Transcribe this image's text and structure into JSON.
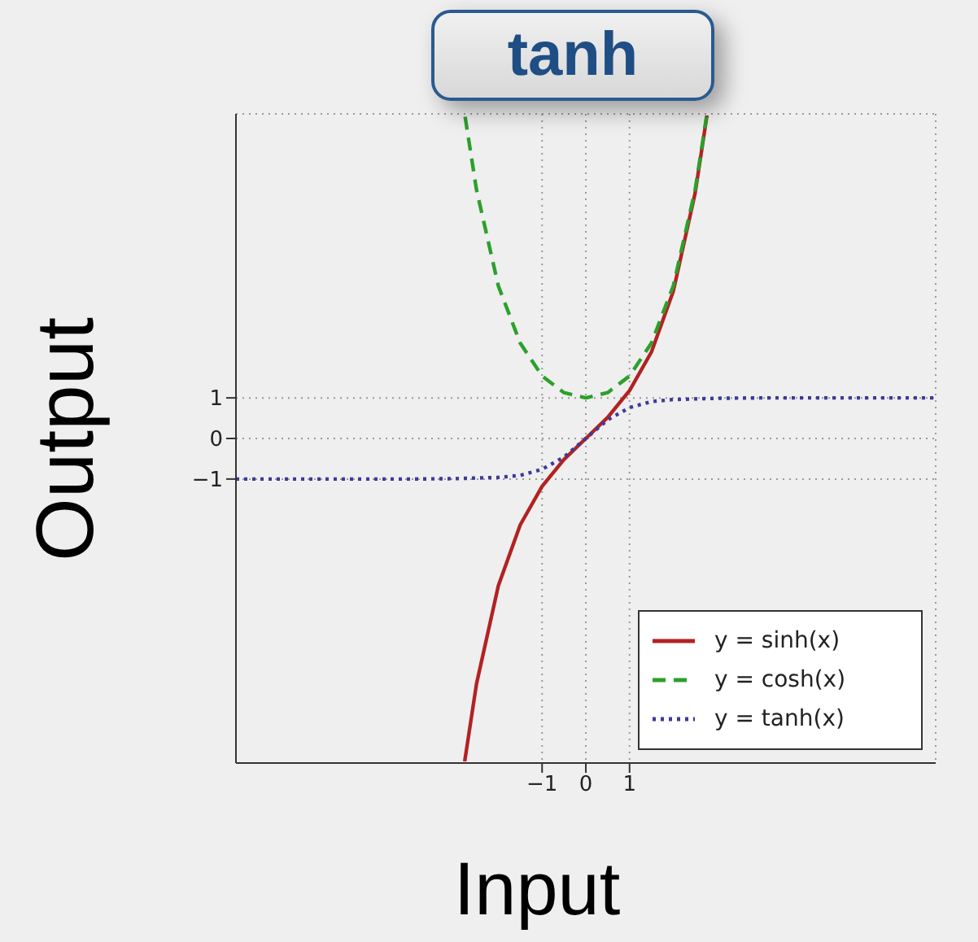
{
  "chart_data": {
    "type": "line",
    "title": "tanh",
    "xlabel": "Input",
    "ylabel": "Output",
    "xlim": [
      -8,
      8
    ],
    "ylim": [
      -8,
      8
    ],
    "xticks": [
      -1,
      0,
      1
    ],
    "yticks": [
      -1,
      0,
      1
    ],
    "grid": true,
    "legend": "bottom right",
    "marker": "none",
    "series": [
      {
        "name": "y = sinh(x)",
        "color": "#b22222",
        "line_style": "solid",
        "x": [
          -2.77,
          -2.5,
          -2,
          -1.5,
          -1,
          -0.5,
          0,
          0.5,
          1,
          1.5,
          2,
          2.5,
          2.77
        ],
        "values": [
          -7.96,
          -6.05,
          -3.63,
          -2.13,
          -1.18,
          -0.52,
          0,
          0.52,
          1.18,
          2.13,
          3.63,
          6.05,
          7.96
        ]
      },
      {
        "name": "y = cosh(x)",
        "color": "#2ca02c",
        "line_style": "dashed",
        "x": [
          -2.76,
          -2.5,
          -2,
          -1.5,
          -1,
          -0.5,
          0,
          0.5,
          1,
          1.5,
          2,
          2.5,
          2.76
        ],
        "values": [
          7.93,
          6.13,
          3.76,
          2.35,
          1.54,
          1.13,
          1,
          1.13,
          1.54,
          2.35,
          3.76,
          6.13,
          7.93
        ]
      },
      {
        "name": "y = tanh(x)",
        "color": "#3b3b9a",
        "line_style": "dotted",
        "x": [
          -8,
          -4,
          -3,
          -2,
          -1.5,
          -1,
          -0.5,
          0,
          0.5,
          1,
          1.5,
          2,
          3,
          4,
          8
        ],
        "values": [
          -1,
          -1,
          -0.99,
          -0.96,
          -0.91,
          -0.76,
          -0.46,
          0,
          0.46,
          0.76,
          0.91,
          0.96,
          0.99,
          1,
          1
        ]
      }
    ]
  }
}
